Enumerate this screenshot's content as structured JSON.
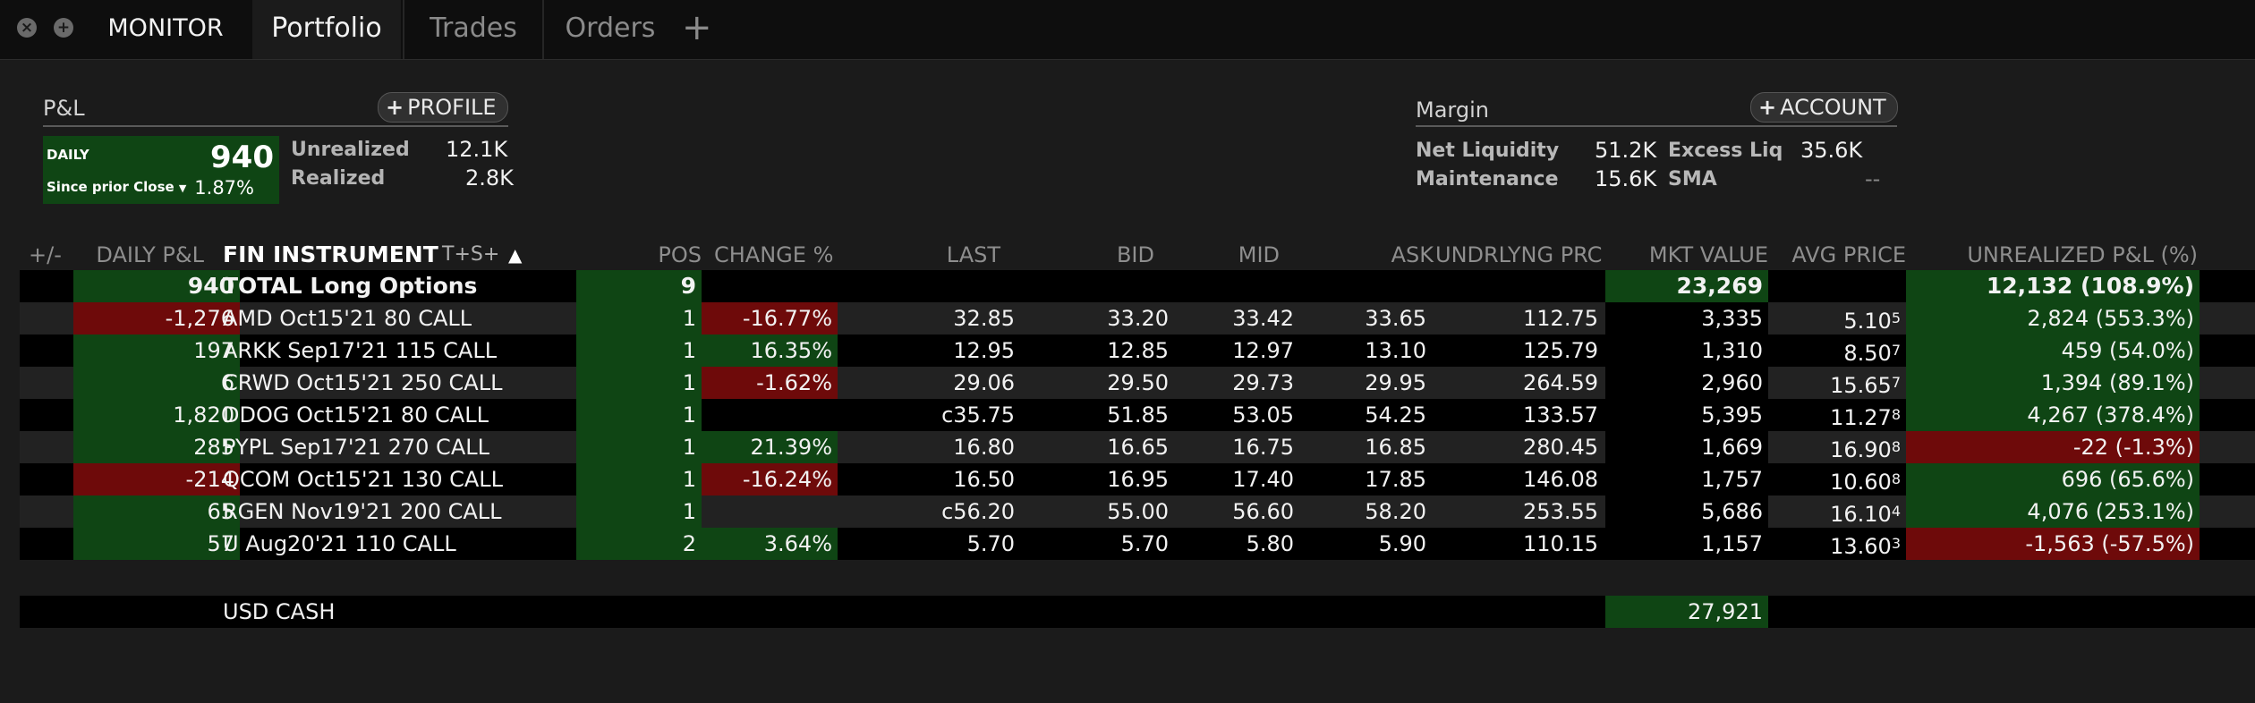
{
  "tabs": {
    "monitor": "MONITOR",
    "portfolio": "Portfolio",
    "trades": "Trades",
    "orders": "Orders",
    "add": "+"
  },
  "pnl": {
    "title": "P&L",
    "profile_button": "PROFILE",
    "daily_label": "DAILY",
    "daily_value": "940",
    "since_label": "Since prior Close",
    "daily_pct": "1.87%",
    "unrealized_label": "Unrealized",
    "unrealized_value": "12.1K",
    "realized_label": "Realized",
    "realized_value": "2.8K"
  },
  "margin": {
    "title": "Margin",
    "account_button": "ACCOUNT",
    "net_liq_label": "Net Liquidity",
    "net_liq_value": "51.2K",
    "excess_liq_label": "Excess Liq",
    "excess_liq_value": "35.6K",
    "maintenance_label": "Maintenance",
    "maintenance_value": "15.6K",
    "sma_label": "SMA",
    "sma_value": "--"
  },
  "table": {
    "headers": {
      "plusminus": "+/-",
      "daily_pnl": "DAILY P&L",
      "instrument": "FIN INSTRUMENT",
      "tsplus": "T+S+",
      "pos": "POS",
      "change": "CHANGE %",
      "last": "LAST",
      "bid": "BID",
      "mid": "MID",
      "ask": "ASK",
      "undrlyng": "UNDRLYNG PRC",
      "mkt_value": "MKT VALUE",
      "avg_price": "AVG PRICE",
      "unrealized": "UNREALIZED P&L (%)"
    },
    "total": {
      "daily_pnl": "940",
      "instrument": "TOTAL  Long Options",
      "pos": "9",
      "mkt_value": "23,269",
      "unrealized": "12,132 (108.9%)"
    },
    "rows": [
      {
        "daily_pnl": "-1,276",
        "instrument": "AMD Oct15'21 80 CALL",
        "pos": "1",
        "change": "-16.77%",
        "last": "32.85",
        "bid": "33.20",
        "mid": "33.42",
        "ask": "33.65",
        "undrlyng": "112.75",
        "mkt_value": "3,335",
        "avg_main": "5.10",
        "avg_sup": "5",
        "unrealized": "2,824 (553.3%)"
      },
      {
        "daily_pnl": "197",
        "instrument": "ARKK Sep17'21 115 CALL",
        "pos": "1",
        "change": "16.35%",
        "last": "12.95",
        "bid": "12.85",
        "mid": "12.97",
        "ask": "13.10",
        "undrlyng": "125.79",
        "mkt_value": "1,310",
        "avg_main": "8.50",
        "avg_sup": "7",
        "unrealized": "459 (54.0%)"
      },
      {
        "daily_pnl": "6",
        "instrument": "CRWD Oct15'21 250 CALL",
        "pos": "1",
        "change": "-1.62%",
        "last": "29.06",
        "bid": "29.50",
        "mid": "29.73",
        "ask": "29.95",
        "undrlyng": "264.59",
        "mkt_value": "2,960",
        "avg_main": "15.65",
        "avg_sup": "7",
        "unrealized": "1,394 (89.1%)"
      },
      {
        "daily_pnl": "1,820",
        "instrument": "DDOG Oct15'21 80 CALL",
        "pos": "1",
        "change": "",
        "last": "c35.75",
        "bid": "51.85",
        "mid": "53.05",
        "ask": "54.25",
        "undrlyng": "133.57",
        "mkt_value": "5,395",
        "avg_main": "11.27",
        "avg_sup": "8",
        "unrealized": "4,267 (378.4%)"
      },
      {
        "daily_pnl": "285",
        "instrument": "PYPL Sep17'21 270 CALL",
        "pos": "1",
        "change": "21.39%",
        "last": "16.80",
        "bid": "16.65",
        "mid": "16.75",
        "ask": "16.85",
        "undrlyng": "280.45",
        "mkt_value": "1,669",
        "avg_main": "16.90",
        "avg_sup": "8",
        "unrealized": "-22 (-1.3%)"
      },
      {
        "daily_pnl": "-214",
        "instrument": "QCOM Oct15'21 130 CALL",
        "pos": "1",
        "change": "-16.24%",
        "last": "16.50",
        "bid": "16.95",
        "mid": "17.40",
        "ask": "17.85",
        "undrlyng": "146.08",
        "mkt_value": "1,757",
        "avg_main": "10.60",
        "avg_sup": "8",
        "unrealized": "696 (65.6%)"
      },
      {
        "daily_pnl": "65",
        "instrument": "RGEN Nov19'21 200 CALL",
        "pos": "1",
        "change": "",
        "last": "c56.20",
        "bid": "55.00",
        "mid": "56.60",
        "ask": "58.20",
        "undrlyng": "253.55",
        "mkt_value": "5,686",
        "avg_main": "16.10",
        "avg_sup": "4",
        "unrealized": "4,076 (253.1%)"
      },
      {
        "daily_pnl": "57",
        "instrument": "U Aug20'21 110 CALL",
        "pos": "2",
        "change": "3.64%",
        "last": "5.70",
        "bid": "5.70",
        "mid": "5.80",
        "ask": "5.90",
        "undrlyng": "110.15",
        "mkt_value": "1,157",
        "avg_main": "13.60",
        "avg_sup": "3",
        "unrealized": "-1,563 (-57.5%)"
      }
    ],
    "cash": {
      "label": "USD CASH",
      "mkt_value": "27,921"
    }
  },
  "colors": {
    "green": "#0f4514",
    "red": "#6e0a0a"
  }
}
